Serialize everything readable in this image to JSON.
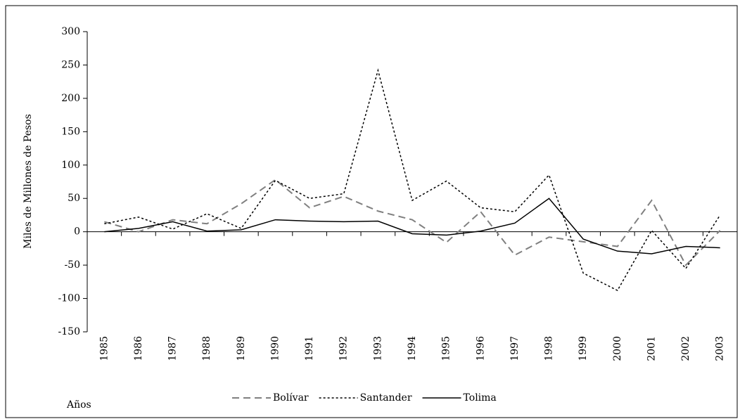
{
  "chart_data": {
    "type": "line",
    "y_label": "Miles de Millones de Pesos",
    "x_label": "Años",
    "categories": [
      "1985",
      "1986",
      "1987",
      "1988",
      "1989",
      "1990",
      "1991",
      "1992",
      "1993",
      "1994",
      "1995",
      "1996",
      "1997",
      "1998",
      "1999",
      "2000",
      "2001",
      "2002",
      "2003"
    ],
    "series": [
      {
        "name": "Bolívar",
        "color": "#808080",
        "dash": "dashed",
        "values": [
          15,
          0,
          18,
          12,
          42,
          78,
          36,
          53,
          31,
          18,
          -16,
          30,
          -35,
          -8,
          -15,
          -22,
          47,
          -50,
          2
        ]
      },
      {
        "name": "Santander",
        "color": "#000000",
        "dash": "dotted",
        "values": [
          12,
          22,
          4,
          27,
          5,
          77,
          50,
          57,
          242,
          47,
          76,
          36,
          30,
          85,
          -62,
          -88,
          2,
          -55,
          25
        ]
      },
      {
        "name": "Tolima",
        "color": "#000000",
        "dash": "solid",
        "values": [
          0,
          5,
          15,
          1,
          3,
          18,
          16,
          15,
          16,
          -3,
          -5,
          1,
          13,
          50,
          -11,
          -29,
          -33,
          -22,
          -24
        ]
      }
    ],
    "ylim": [
      -150,
      300
    ],
    "yticks": [
      -150,
      -100,
      -50,
      0,
      50,
      100,
      150,
      200,
      250,
      300
    ]
  }
}
